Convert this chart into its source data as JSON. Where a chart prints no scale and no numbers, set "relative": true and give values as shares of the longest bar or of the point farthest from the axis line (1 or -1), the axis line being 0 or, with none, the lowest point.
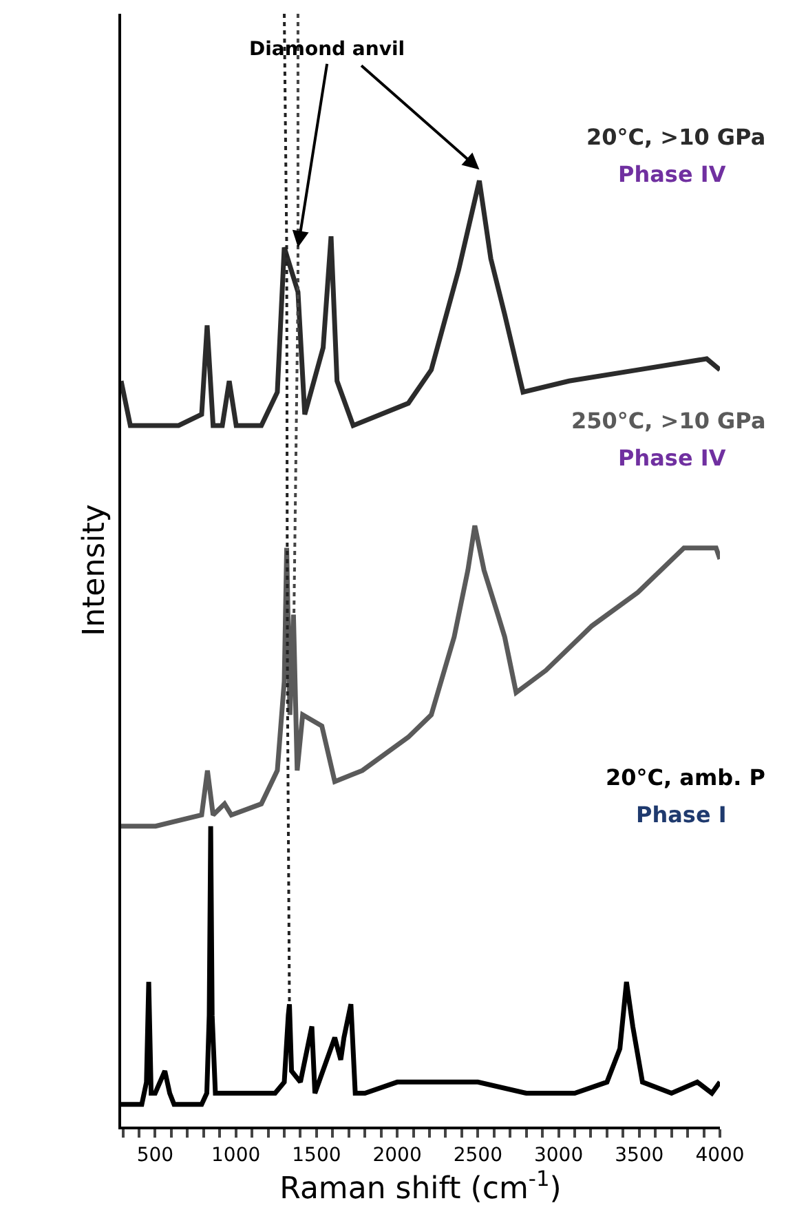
{
  "chart_data": {
    "type": "line",
    "relative": true,
    "xlabel": "Raman shift (cm$^{-1}$)",
    "ylabel": "Intensity",
    "xlim": [
      289,
      4000
    ],
    "xticks": [
      {
        "value": 300,
        "label": null
      },
      {
        "value": 400,
        "label": null
      },
      500,
      {
        "value": 600,
        "label": null
      },
      {
        "value": 700,
        "label": null
      },
      {
        "value": 800,
        "label": null
      },
      {
        "value": 900,
        "label": null
      },
      1000,
      {
        "value": 1100,
        "label": null
      },
      {
        "value": 1200,
        "label": null
      },
      {
        "value": 1300,
        "label": null
      },
      {
        "value": 1400,
        "label": null
      },
      1500,
      {
        "value": 1600,
        "label": null
      },
      {
        "value": 1700,
        "label": null
      },
      {
        "value": 1800,
        "label": null
      },
      {
        "value": 1900,
        "label": null
      },
      2000,
      {
        "value": 2100,
        "label": null
      },
      {
        "value": 2200,
        "label": null
      },
      {
        "value": 2300,
        "label": null
      },
      {
        "value": 2400,
        "label": null
      },
      2500,
      {
        "value": 2600,
        "label": null
      },
      {
        "value": 2700,
        "label": null
      },
      {
        "value": 2800,
        "label": null
      },
      {
        "value": 2900,
        "label": null
      },
      3000,
      {
        "value": 3100,
        "label": null
      },
      {
        "value": 3200,
        "label": null
      },
      {
        "value": 3300,
        "label": null
      },
      {
        "value": 3400,
        "label": null
      },
      3500,
      {
        "value": 3600,
        "label": null
      },
      {
        "value": 3700,
        "label": null
      },
      {
        "value": 3800,
        "label": null
      },
      {
        "value": 3900,
        "label": null
      },
      4000
    ],
    "legend": false,
    "marker": "none",
    "series": [
      {
        "name": "20°C, >10 GPa",
        "color": "#2b2b2b",
        "x": [
          289,
          346,
          645,
          788,
          822,
          859,
          916,
          959,
          1002,
          1158,
          1257,
          1300,
          1385,
          1427,
          1541,
          1590,
          1627,
          1727,
          2069,
          2211,
          2381,
          2509,
          2580,
          2666,
          2780,
          3065,
          3491,
          3918,
          4000
        ],
        "values": [
          0.67,
          0.63,
          0.63,
          0.64,
          0.72,
          0.63,
          0.63,
          0.67,
          0.63,
          0.63,
          0.66,
          0.79,
          0.75,
          0.64,
          0.7,
          0.8,
          0.67,
          0.63,
          0.65,
          0.68,
          0.77,
          0.85,
          0.78,
          0.73,
          0.66,
          0.67,
          0.68,
          0.69,
          0.68
        ]
      },
      {
        "name": "250°C, >10 GPa",
        "color": "#5a5a5a",
        "x": [
          289,
          503,
          788,
          824,
          859,
          930,
          972,
          1158,
          1257,
          1300,
          1315,
          1335,
          1357,
          1380,
          1414,
          1533,
          1613,
          1784,
          2069,
          2211,
          2353,
          2438,
          2481,
          2538,
          2624,
          2666,
          2737,
          2922,
          3207,
          3491,
          3777,
          3976,
          4000
        ],
        "values": [
          0.27,
          0.27,
          0.28,
          0.32,
          0.28,
          0.29,
          0.28,
          0.29,
          0.32,
          0.4,
          0.52,
          0.37,
          0.46,
          0.32,
          0.37,
          0.36,
          0.31,
          0.32,
          0.35,
          0.37,
          0.44,
          0.5,
          0.54,
          0.5,
          0.46,
          0.44,
          0.39,
          0.41,
          0.45,
          0.48,
          0.52,
          0.52,
          0.51
        ]
      },
      {
        "name": "20°C, amb. P",
        "color": "#000000",
        "x": [
          289,
          417,
          446,
          460,
          475,
          500,
          560,
          590,
          617,
          688,
          788,
          820,
          835,
          844,
          853,
          873,
          987,
          1100,
          1243,
          1300,
          1325,
          1332,
          1345,
          1400,
          1471,
          1490,
          1613,
          1650,
          1670,
          1713,
          1740,
          1800,
          2000,
          2200,
          2500,
          2800,
          3100,
          3300,
          3380,
          3421,
          3460,
          3520,
          3700,
          3860,
          3950,
          4000
        ],
        "values": [
          0.02,
          0.02,
          0.04,
          0.13,
          0.03,
          0.03,
          0.05,
          0.03,
          0.02,
          0.02,
          0.02,
          0.03,
          0.1,
          0.27,
          0.1,
          0.03,
          0.03,
          0.03,
          0.03,
          0.04,
          0.1,
          0.11,
          0.05,
          0.04,
          0.09,
          0.03,
          0.08,
          0.06,
          0.08,
          0.11,
          0.03,
          0.03,
          0.04,
          0.04,
          0.04,
          0.03,
          0.03,
          0.04,
          0.07,
          0.13,
          0.09,
          0.04,
          0.03,
          0.04,
          0.03,
          0.04
        ]
      },
      {
        "color": "#222222",
        "line_style": "dotted",
        "x": [
          1300,
          1315,
          1320,
          1332
        ],
        "values": [
          1.0,
          0.79,
          0.39,
          0.11
        ]
      },
      {
        "color": "#444444",
        "line_style": "dotted",
        "x": [
          1385,
          1385,
          1360
        ],
        "values": [
          1.0,
          0.75,
          0.46
        ]
      }
    ],
    "annotations": [
      {
        "text": "Diamond anvil",
        "x": 1385,
        "y": 0.79
      },
      "Phase IV",
      "Phase IV",
      "Phase I"
    ]
  }
}
